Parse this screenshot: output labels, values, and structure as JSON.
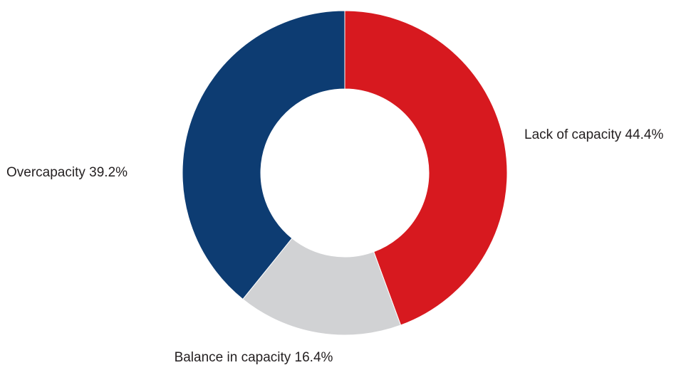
{
  "chart_data": {
    "type": "pie",
    "donut": true,
    "title": "",
    "slices": [
      {
        "label": "Lack of capacity 44.4%",
        "category": "Lack of capacity",
        "value": 44.4,
        "color": "#d7191f"
      },
      {
        "label": "Balance in capacity 16.4%",
        "category": "Balance in capacity",
        "value": 16.4,
        "color": "#d1d2d4"
      },
      {
        "label": "Overcapacity 39.2%",
        "category": "Overcapacity",
        "value": 39.2,
        "color": "#0d3c72"
      }
    ],
    "start_angle": "top (12 o'clock)",
    "direction": "clockwise",
    "legend": "none (direct labels)"
  }
}
